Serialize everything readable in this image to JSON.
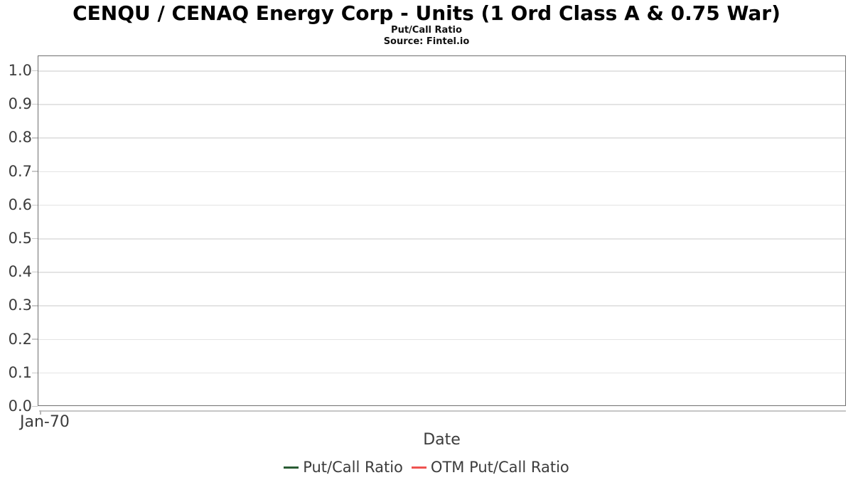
{
  "header": {
    "title": "CENQU / CENAQ Energy Corp - Units (1 Ord Class A & 0.75 War)",
    "subtitle": "Put/Call Ratio",
    "source_line": "Source: Fintel.io"
  },
  "chart_data": {
    "type": "line",
    "title": "CENQU / CENAQ Energy Corp - Units (1 Ord Class A & 0.75 War)",
    "subtitle": "Put/Call Ratio",
    "source_line": "Source: Fintel.io",
    "xlabel": "Date",
    "ylabel": "",
    "x_ticks": [
      "Jan-70"
    ],
    "y_ticks": [
      0.0,
      0.1,
      0.2,
      0.3,
      0.4,
      0.5,
      0.6,
      0.7,
      0.8,
      0.9,
      1.0
    ],
    "ylim": [
      0.0,
      1.05
    ],
    "grid": true,
    "legend_position": "bottom",
    "series": [
      {
        "name": "Put/Call Ratio",
        "color": "#2a5c34",
        "x": [],
        "values": []
      },
      {
        "name": "OTM Put/Call Ratio",
        "color": "#ef5350",
        "x": [],
        "values": []
      }
    ]
  }
}
